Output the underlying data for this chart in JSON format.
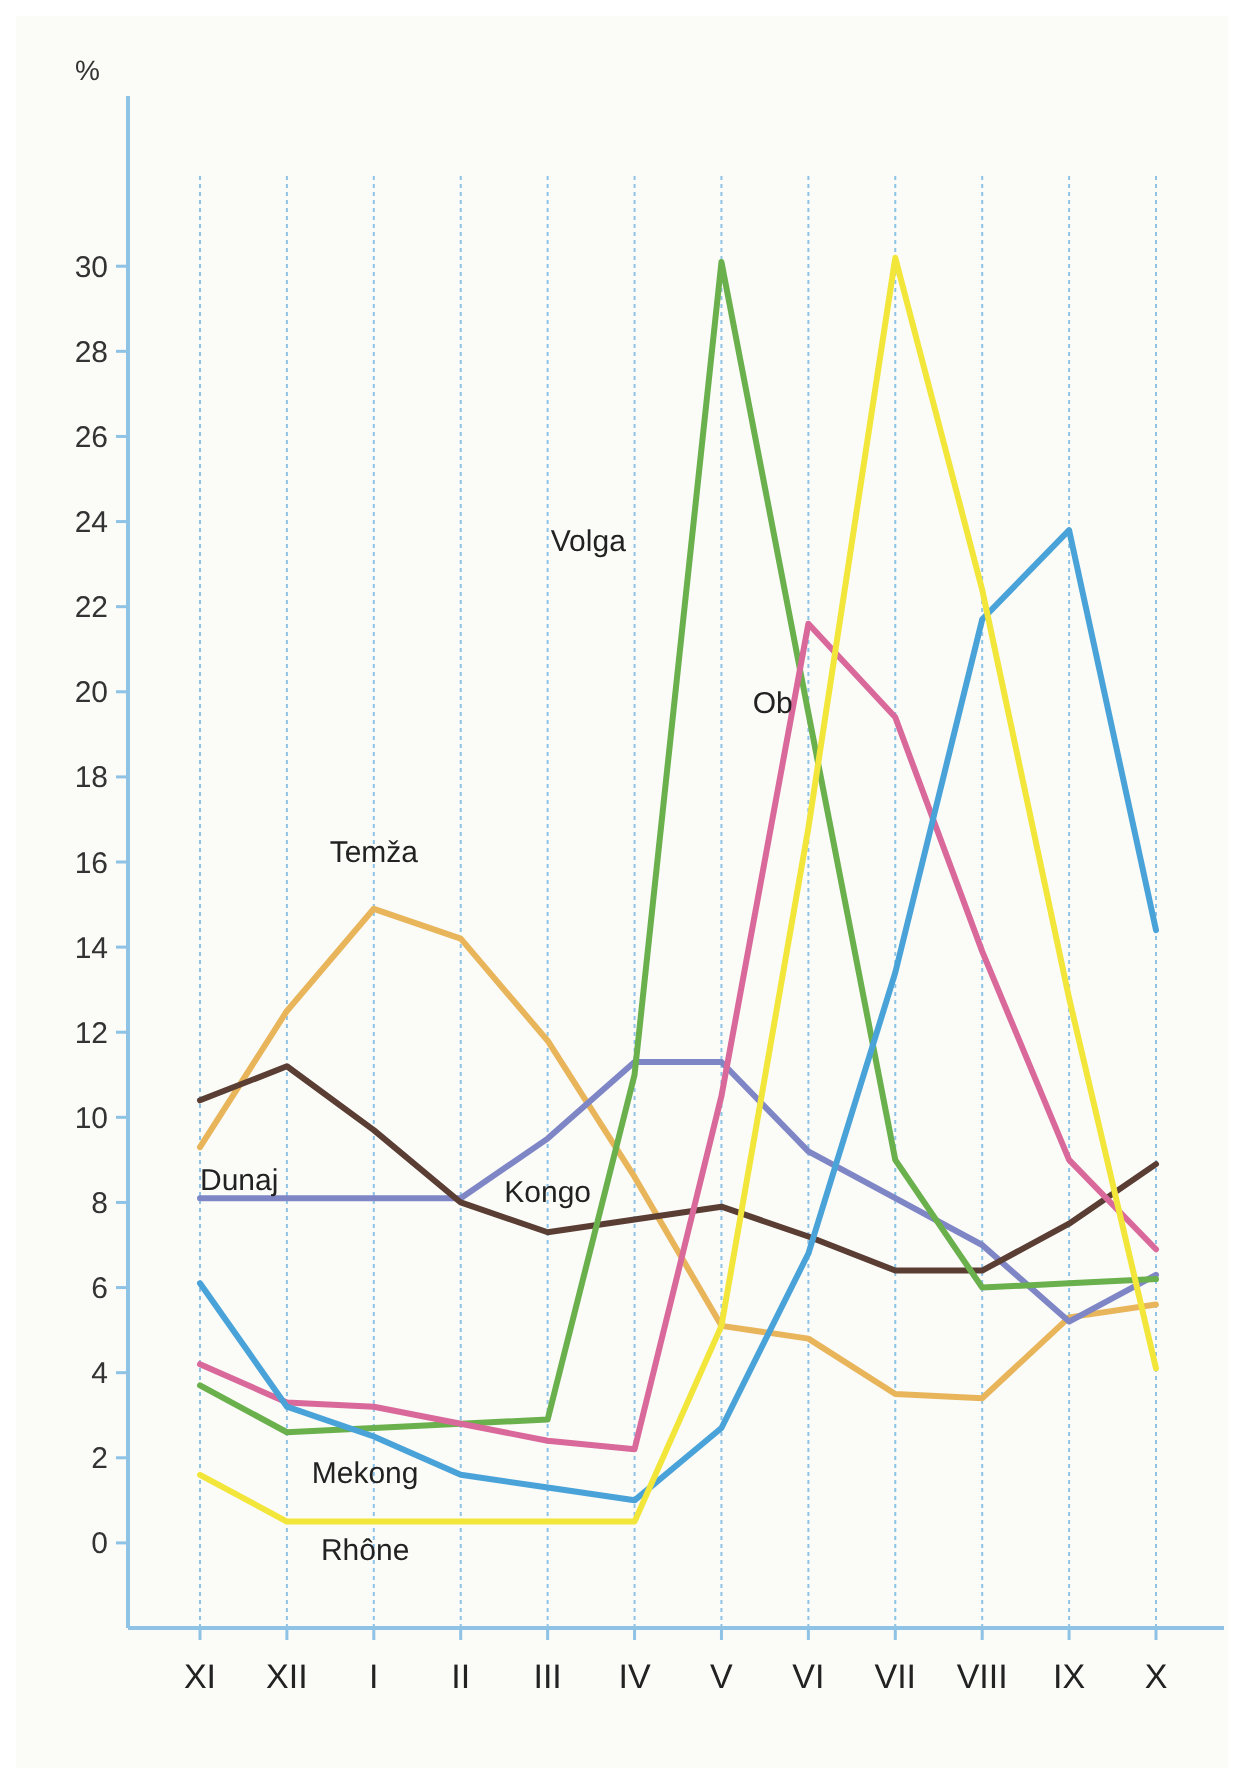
{
  "chart_data": {
    "type": "line",
    "ylabel": "%",
    "categories": [
      "XI",
      "XII",
      "I",
      "II",
      "III",
      "IV",
      "V",
      "VI",
      "VII",
      "VIII",
      "IX",
      "X"
    ],
    "ylim": [
      -2,
      34
    ],
    "yticks": [
      0,
      2,
      4,
      6,
      8,
      10,
      12,
      14,
      16,
      18,
      20,
      22,
      24,
      26,
      28,
      30
    ],
    "grid": "x",
    "legend": false,
    "marker": "none",
    "line_style": "solid",
    "series": [
      {
        "name": "Temža",
        "color": "#e8b55a",
        "values": [
          9.3,
          12.5,
          14.9,
          14.2,
          11.8,
          8.6,
          5.1,
          4.8,
          3.5,
          3.4,
          5.3,
          5.6
        ]
      },
      {
        "name": "Dunaj",
        "color": "#7f86c6",
        "values": [
          8.1,
          8.1,
          8.1,
          8.1,
          9.5,
          11.3,
          11.3,
          9.2,
          8.1,
          7.0,
          5.2,
          6.3
        ]
      },
      {
        "name": "Kongo",
        "color": "#5a3d33",
        "values": [
          10.4,
          11.2,
          9.7,
          8.0,
          7.3,
          7.6,
          7.9,
          7.2,
          6.4,
          6.4,
          7.5,
          8.9
        ]
      },
      {
        "name": "Volga",
        "color": "#6ab04c",
        "values": [
          3.7,
          2.6,
          2.7,
          2.8,
          2.9,
          11,
          30.1,
          19.5,
          9.0,
          6.0,
          6.1,
          6.2
        ]
      },
      {
        "name": "Ob",
        "color": "#d9699a",
        "values": [
          4.2,
          3.3,
          3.2,
          2.8,
          2.4,
          2.2,
          10.5,
          21.6,
          19.4,
          13.9,
          9.0,
          6.9
        ]
      },
      {
        "name": "Mekong",
        "color": "#4aa3d8",
        "values": [
          6.1,
          3.2,
          2.5,
          1.6,
          1.3,
          1.0,
          2.7,
          6.8,
          13.4,
          21.7,
          23.8,
          14.4
        ]
      },
      {
        "name": "Rhône",
        "color": "#f2e63a",
        "values": [
          1.6,
          0.5,
          0.5,
          0.5,
          0.5,
          0.5,
          5.1,
          16.8,
          30.2,
          22.4,
          12.8,
          4.1
        ]
      }
    ]
  }
}
